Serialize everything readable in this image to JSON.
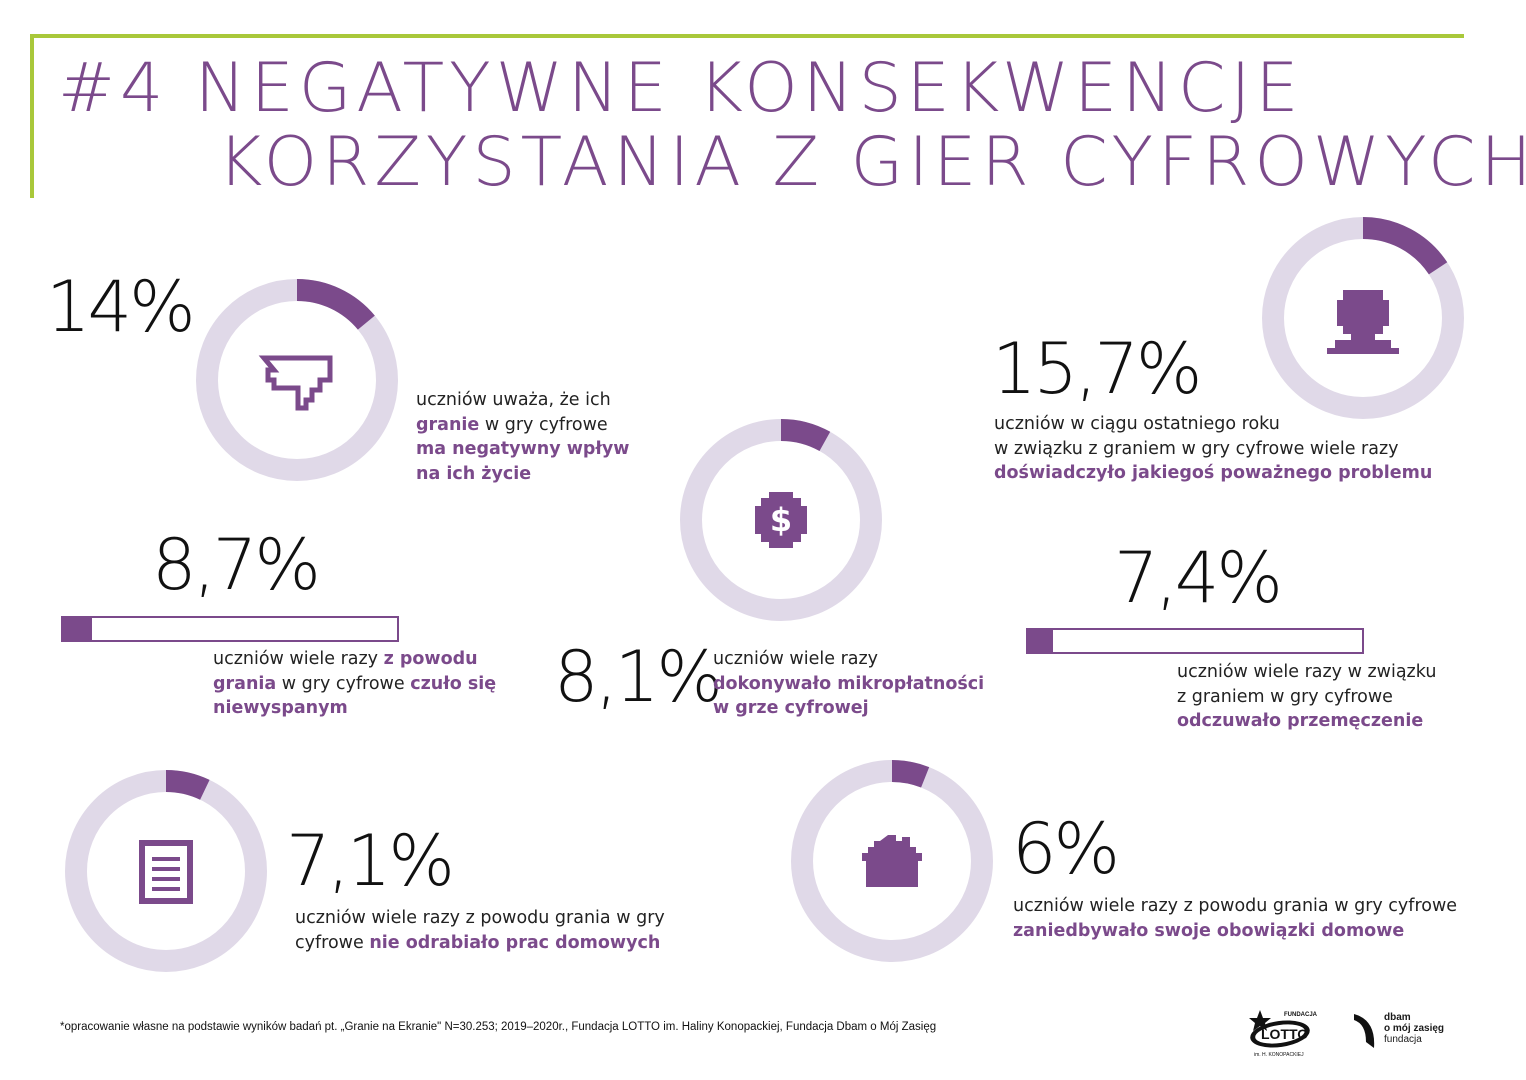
{
  "colors": {
    "accent": "#7b4a8b",
    "track": "#e0d9e8",
    "frame": "#a9c83a"
  },
  "title": {
    "line1": "#4 NEGATYWNE KONSEKWENCJE",
    "line2": "      KORZYSTANIA Z GIER CYFROWYCH"
  },
  "chart_data": [
    {
      "type": "donut",
      "value": 14,
      "label": "14%",
      "icon": "thumbs-down-icon",
      "desc": [
        [
          {
            "t": "uczniów uważa, że ich",
            "b": false
          }
        ],
        [
          {
            "t": "granie",
            "b": true
          },
          {
            "t": " w gry cyfrowe",
            "b": false
          }
        ],
        [
          {
            "t": "ma negatywny wpływ",
            "b": true
          }
        ],
        [
          {
            "t": "na ich życie",
            "b": true
          }
        ]
      ]
    },
    {
      "type": "donut",
      "value": 15.7,
      "label": "15,7%",
      "icon": "sad-face-icon",
      "desc": [
        [
          {
            "t": "uczniów w ciągu ostatniego roku",
            "b": false
          }
        ],
        [
          {
            "t": "w związku z graniem w gry cyfrowe wiele razy",
            "b": false
          }
        ],
        [
          {
            "t": "doświadczyło jakiegoś poważnego problemu",
            "b": true
          }
        ]
      ]
    },
    {
      "type": "donut",
      "value": 8.1,
      "label": "8,1%",
      "icon": "coin-dollar-icon",
      "desc": [
        [
          {
            "t": "uczniów wiele razy",
            "b": false
          }
        ],
        [
          {
            "t": "dokonywało mikropłatności",
            "b": true
          }
        ],
        [
          {
            "t": "w grze cyfrowej",
            "b": true
          }
        ]
      ]
    },
    {
      "type": "bar",
      "value": 8.7,
      "label": "8,7%",
      "desc": [
        [
          {
            "t": "uczniów wiele razy ",
            "b": false
          },
          {
            "t": "z powodu",
            "b": true
          }
        ],
        [
          {
            "t": "grania",
            "b": true
          },
          {
            "t": " w gry cyfrowe ",
            "b": false
          },
          {
            "t": "czuło się",
            "b": true
          }
        ],
        [
          {
            "t": "niewyspanym",
            "b": true
          }
        ]
      ]
    },
    {
      "type": "bar",
      "value": 7.4,
      "label": "7,4%",
      "desc": [
        [
          {
            "t": "uczniów wiele razy w związku",
            "b": false
          }
        ],
        [
          {
            "t": "z graniem w gry cyfrowe",
            "b": false
          }
        ],
        [
          {
            "t": "odczuwało przemęczenie",
            "b": true
          }
        ]
      ]
    },
    {
      "type": "donut",
      "value": 7.1,
      "label": "7,1%",
      "icon": "document-icon",
      "desc": [
        [
          {
            "t": "uczniów wiele razy z powodu grania w gry",
            "b": false
          }
        ],
        [
          {
            "t": "cyfrowe ",
            "b": false
          },
          {
            "t": "nie odrabiało prac domowych",
            "b": true
          }
        ]
      ]
    },
    {
      "type": "donut",
      "value": 6,
      "label": "6%",
      "icon": "house-icon",
      "desc": [
        [
          {
            "t": "uczniów wiele razy z powodu grania w gry cyfrowe",
            "b": false
          }
        ],
        [
          {
            "t": "zaniedbywało swoje obowiązki domowe",
            "b": true
          }
        ]
      ]
    }
  ],
  "footnote": "*opracowanie własne na podstawie wyników badań pt. „Granie na Ekranie\" N=30.253; 2019–2020r., Fundacja LOTTO im. Haliny Konopackiej, Fundacja Dbam o Mój Zasięg",
  "logos": {
    "lotto": "FUNDACJA LOTTO im. H. KONOPACKIEJ",
    "dbam": {
      "line1": "dbam",
      "line2": "o mój zasięg",
      "line3": "fundacja"
    }
  }
}
